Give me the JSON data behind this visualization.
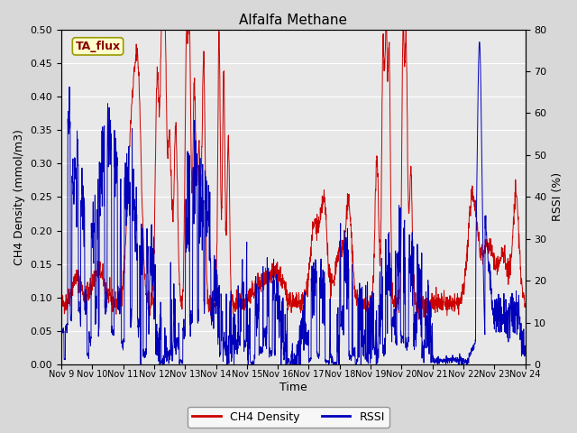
{
  "title": "Alfalfa Methane",
  "xlabel": "Time",
  "ylabel_left": "CH4 Density (mmol/m3)",
  "ylabel_right": "RSSI (%)",
  "legend_label_red": "CH4 Density",
  "legend_label_blue": "RSSI",
  "tag_label": "TA_flux",
  "ylim_left": [
    0.0,
    0.5
  ],
  "ylim_right": [
    0,
    80
  ],
  "yticks_left": [
    0.0,
    0.05,
    0.1,
    0.15,
    0.2,
    0.25,
    0.3,
    0.35,
    0.4,
    0.45,
    0.5
  ],
  "yticks_right": [
    0,
    10,
    20,
    30,
    40,
    50,
    60,
    70,
    80
  ],
  "bg_color": "#d8d8d8",
  "plot_bg_color": "#e8e8e8",
  "red_color": "#cc0000",
  "blue_color": "#0000bb",
  "title_fontsize": 11,
  "label_fontsize": 9,
  "tick_fontsize": 8
}
